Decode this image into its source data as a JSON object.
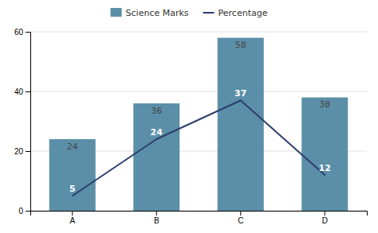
{
  "chart_data": {
    "type": "bar",
    "categories": [
      "A",
      "B",
      "C",
      "D"
    ],
    "series": [
      {
        "name": "Science Marks",
        "type": "bar",
        "color": "#5b8fa8",
        "values": [
          24,
          36,
          58,
          38
        ]
      },
      {
        "name": "Percentage",
        "type": "line",
        "color": "#2c3e6b",
        "values": [
          5,
          24,
          37,
          12
        ]
      }
    ],
    "ylim": [
      0,
      60
    ],
    "yticks": [
      0,
      20,
      40,
      60
    ],
    "grid": true,
    "data_labels": true,
    "legend": "top"
  }
}
